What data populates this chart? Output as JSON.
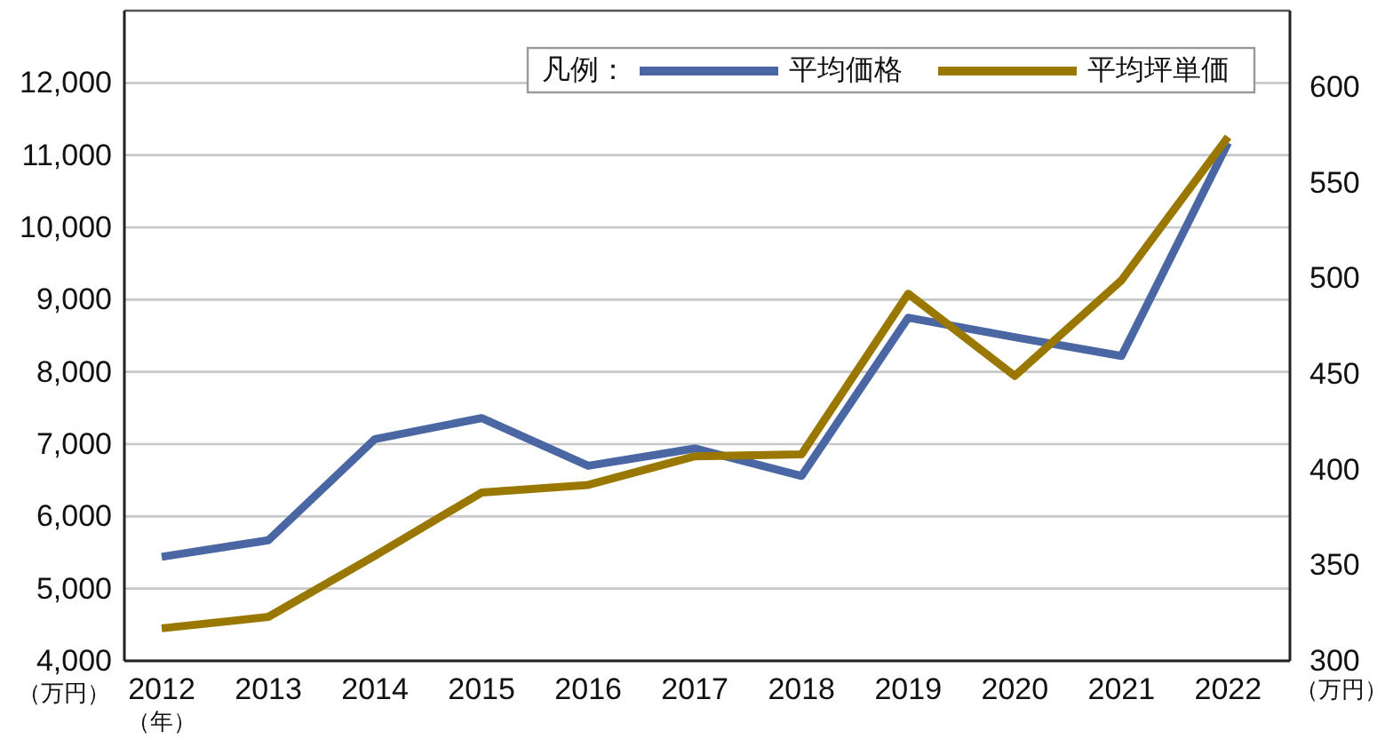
{
  "chart_data": {
    "type": "line",
    "categories": [
      "2012",
      "2013",
      "2014",
      "2015",
      "2016",
      "2017",
      "2018",
      "2019",
      "2020",
      "2021",
      "2022"
    ],
    "xlabel": "（年）",
    "ylabel": "（万円）",
    "y2label": "（万円）",
    "legend_title": "凡例：",
    "series": [
      {
        "name": "平均価格",
        "color": "#4a67a3",
        "values": [
          5440,
          5670,
          7070,
          7360,
          6700,
          6940,
          6560,
          8750,
          8480,
          8220,
          11170
        ]
      },
      {
        "name": "平均坪単価",
        "color": "#9a7800",
        "axis": "y2",
        "values": [
          317,
          323,
          355,
          388,
          392,
          407,
          408,
          492,
          449,
          499,
          574
        ]
      }
    ],
    "ylim": [
      4000,
      13000
    ],
    "yticks": [
      {
        "value": 4000,
        "label": "4,000"
      },
      {
        "value": 5000,
        "label": "5,000"
      },
      {
        "value": 6000,
        "label": "6,000"
      },
      {
        "value": 7000,
        "label": "7,000"
      },
      {
        "value": 8000,
        "label": "8,000"
      },
      {
        "value": 9000,
        "label": "9,000"
      },
      {
        "value": 10000,
        "label": "10,000"
      },
      {
        "value": 11000,
        "label": "11,000"
      },
      {
        "value": 12000,
        "label": "12,000"
      }
    ],
    "y2lim": [
      300,
      640
    ],
    "y2ticks": [
      300,
      350,
      400,
      450,
      500,
      550,
      600
    ],
    "grid": "y",
    "legend": "top right",
    "line_style": "solid"
  }
}
